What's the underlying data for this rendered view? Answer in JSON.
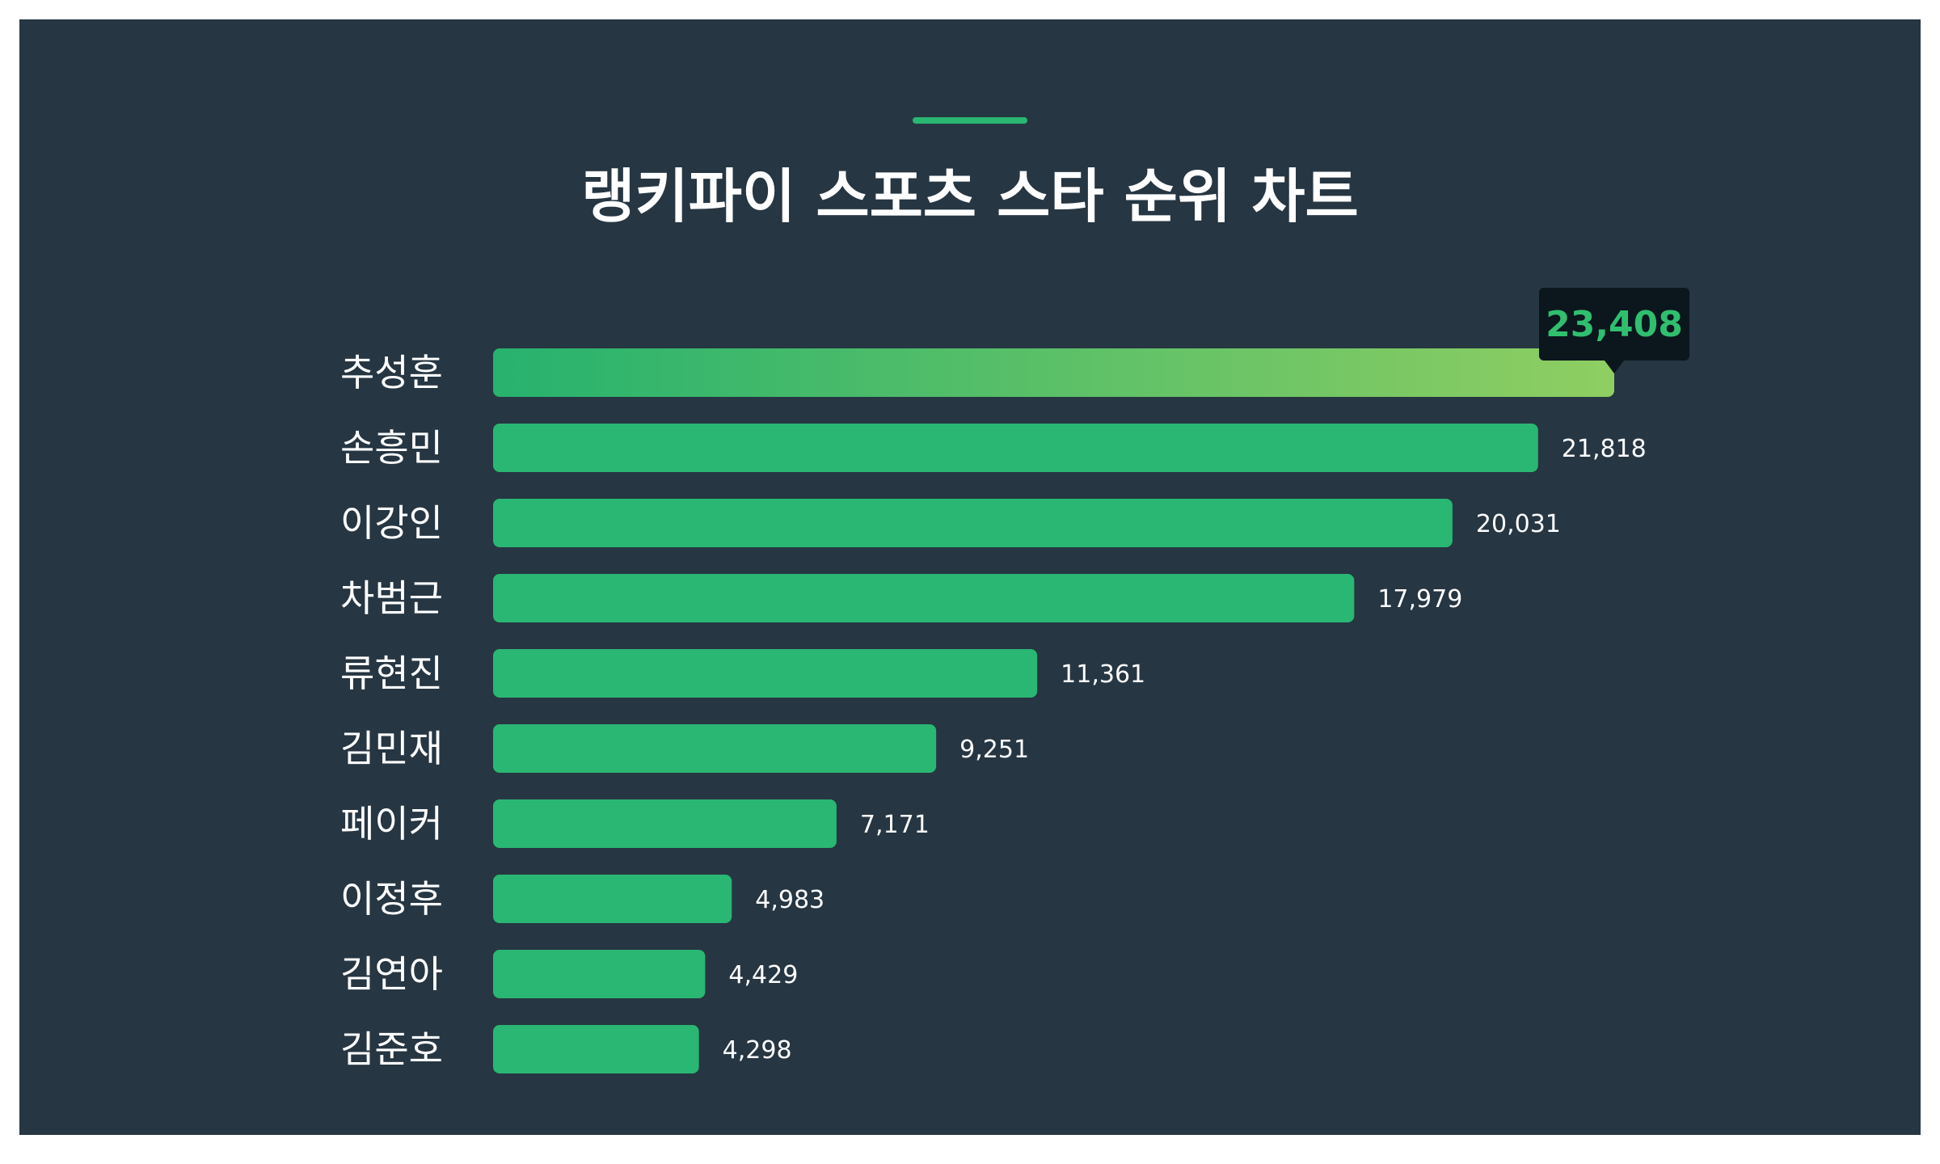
{
  "title": "랭키파이 스포츠 스타 순위 차트",
  "colors": {
    "background": "#263642",
    "bar": "#2ab673",
    "accent": "#2ab673",
    "highlight_start": "#27b26e",
    "highlight_end": "#8fce62",
    "tooltip_bg": "#0c161d",
    "tooltip_text": "#2fbf6f",
    "text": "#ffffff"
  },
  "chart_data": {
    "type": "bar",
    "orientation": "horizontal",
    "title": "랭키파이 스포츠 스타 순위 차트",
    "categories": [
      "추성훈",
      "손흥민",
      "이강인",
      "차범근",
      "류현진",
      "김민재",
      "페이커",
      "이정후",
      "김연아",
      "김준호"
    ],
    "values": [
      23408,
      21818,
      20031,
      17979,
      11361,
      9251,
      7171,
      4983,
      4429,
      4298
    ],
    "value_labels": [
      "23,408",
      "21,818",
      "20,031",
      "17,979",
      "11,361",
      "9,251",
      "7,171",
      "4,983",
      "4,429",
      "4,298"
    ],
    "highlight_index": 0,
    "xlim": [
      0,
      23408
    ],
    "grid": false,
    "legend": "none"
  }
}
